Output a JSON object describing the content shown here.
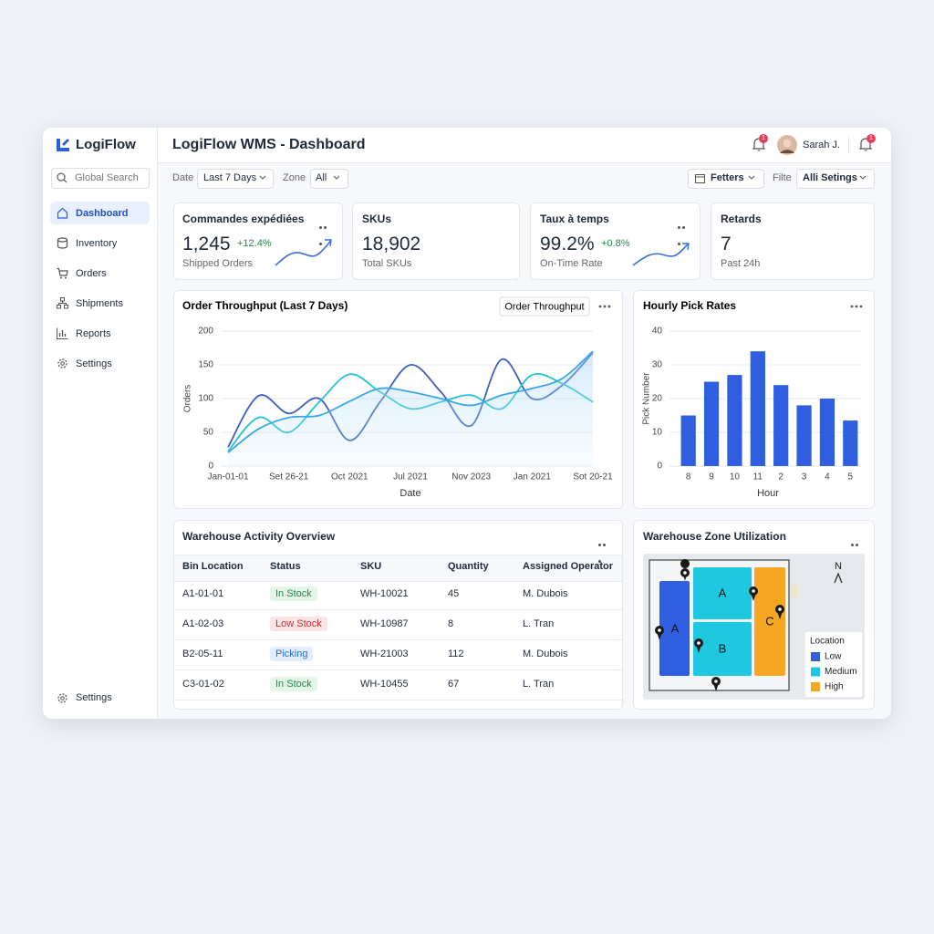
{
  "sidebar": {
    "brand": "LogiFlow",
    "search": "Global Search",
    "nav": [
      "Dashboard",
      "Inventory",
      "Orders",
      "Shipments",
      "Reports",
      "Settings"
    ],
    "footer": "Settings"
  },
  "header": {
    "title": "LogiFlow WMS - Dashboard",
    "user": "Sarah J.",
    "badges": [
      "1",
      "1"
    ]
  },
  "filters": {
    "date_label": "Date",
    "date_value": "Last 7 Days",
    "zone_label": "Zone",
    "zone_value": "All",
    "filters_button": "Fetters",
    "filter_label": "Filte",
    "settings_value": "Alli Setings"
  },
  "kpis": [
    {
      "title": "Commandes expédiées",
      "value": "1,245",
      "change": "+12.4%",
      "caption": "Shipped Orders"
    },
    {
      "title": "SKUs",
      "value": "18,902",
      "caption": "Total SKUs"
    },
    {
      "title": "Taux à temps",
      "value": "99.2%",
      "change": "+0.8%",
      "caption": "On-Time Rate"
    },
    {
      "title": "Retards",
      "value": "7",
      "caption": "Past 24h"
    }
  ],
  "chart_data": [
    {
      "type": "line",
      "title": "Order Throughput (Last 7 Days)",
      "button": "Order Throughput",
      "ylabel": "Orders",
      "xlabel": "Date",
      "categories": [
        "Jan-01-01",
        null,
        "Set 26-21",
        null,
        "Oct 2021",
        null,
        "Jul 2021",
        null,
        "Nov 2023",
        null,
        "Jan 2021",
        null,
        "Sot 20-21"
      ],
      "series": [
        {
          "color": "#3d5fc4",
          "values": [
            28,
            104,
            78,
            100,
            38,
            95,
            150,
            110,
            60,
            158,
            100,
            120,
            168
          ]
        },
        {
          "color": "#22c3d6",
          "values": [
            22,
            72,
            50,
            95,
            136,
            110,
            85,
            95,
            105,
            85,
            135,
            122,
            95
          ]
        },
        {
          "color": "#3aa6e8",
          "values": [
            20,
            55,
            72,
            75,
            96,
            115,
            110,
            100,
            90,
            105,
            115,
            130,
            170
          ]
        }
      ],
      "ylim": [
        0,
        200
      ],
      "yticks": [
        0,
        50,
        100,
        150,
        200
      ],
      "grid": true
    },
    {
      "type": "bar",
      "title": "Hourly Pick Rates",
      "ylabel": "Pick Number",
      "xlabel": "Hour",
      "categories": [
        "8",
        "9",
        "10",
        "11",
        "2",
        "3",
        "4",
        "5"
      ],
      "values": [
        15,
        25,
        27,
        34,
        24,
        18,
        20,
        13.5
      ],
      "color": "#2f5fe0",
      "ylim": [
        0,
        40
      ],
      "yticks": [
        0,
        10,
        20,
        30,
        40
      ],
      "grid": true
    }
  ],
  "table": {
    "title": "Warehouse Activity Overview",
    "columns": [
      "Bin Location",
      "Status",
      "SKU",
      "Quantity",
      "Assigned Operator"
    ],
    "rows": [
      [
        "A1-01-01",
        "In Stock",
        "WH-10021",
        "45",
        "M. Dubois"
      ],
      [
        "A1-02-03",
        "Low Stock",
        "WH-10987",
        "8",
        "L. Tran"
      ],
      [
        "B2-05-11",
        "Picking",
        "WH-21003",
        "112",
        "M. Dubois"
      ],
      [
        "C3-01-02",
        "In Stock",
        "WH-10455",
        "67",
        "L. Tran"
      ]
    ]
  },
  "zone_map": {
    "title": "Warehouse Zone Utilization",
    "zones": [
      "A",
      "A",
      "B",
      "C"
    ],
    "compass": "N",
    "legend_title": "Location",
    "legend": [
      {
        "name": "Low",
        "color": "#2f5fe0"
      },
      {
        "name": "Medium",
        "color": "#1ec8e0"
      },
      {
        "name": "High",
        "color": "#f5a623"
      }
    ]
  }
}
